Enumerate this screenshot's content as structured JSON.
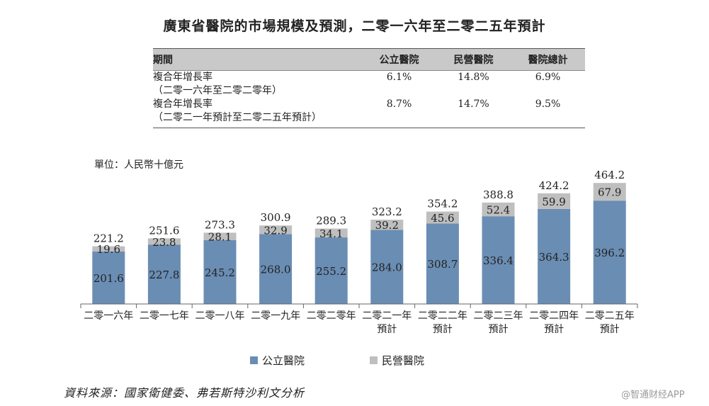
{
  "title": "廣東省醫院的市場規模及預測，二零一六年至二零二五年預計",
  "table": {
    "headers": [
      "期間",
      "公立醫院",
      "民營醫院",
      "醫院總計"
    ],
    "rows": [
      {
        "label": "複合年增長率",
        "sub": "（二零一六年至二零二零年）",
        "values": [
          "6.1%",
          "14.8%",
          "6.9%"
        ]
      },
      {
        "label": "複合年增長率",
        "sub": "（二零二一年預計至二零二五年預計）",
        "values": [
          "8.7%",
          "14.7%",
          "9.5%"
        ]
      }
    ]
  },
  "unit_label": "單位：人民幣十億元",
  "chart_data": {
    "type": "bar",
    "stacked": true,
    "categories": [
      "二零一六年",
      "二零一七年",
      "二零一八年",
      "二零一九年",
      "二零二零年",
      "二零二一年\n預計",
      "二零二二年\n預計",
      "二零二三年\n預計",
      "二零二四年\n預計",
      "二零二五年\n預計"
    ],
    "series": [
      {
        "name": "公立醫院",
        "values": [
          201.6,
          227.8,
          245.2,
          268.0,
          255.2,
          284.0,
          308.7,
          336.4,
          364.3,
          396.2
        ],
        "color": "#6a8db3"
      },
      {
        "name": "民營醫院",
        "values": [
          19.6,
          23.8,
          28.1,
          32.9,
          34.1,
          39.2,
          45.6,
          52.4,
          59.9,
          67.9
        ],
        "color": "#bfbfbf"
      }
    ],
    "totals": [
      221.2,
      251.6,
      273.3,
      300.9,
      289.3,
      323.2,
      354.2,
      388.8,
      424.2,
      464.2
    ],
    "ylim": [
      0,
      470
    ],
    "xlabel": "",
    "ylabel": "",
    "legend_position": "bottom"
  },
  "legend": [
    {
      "label": "公立醫院",
      "color": "#6a8db3"
    },
    {
      "label": "民營醫院",
      "color": "#bfbfbf"
    }
  ],
  "source": "資料來源：國家衛健委、弗若斯特沙利文分析",
  "watermark": "@智通财经APP"
}
